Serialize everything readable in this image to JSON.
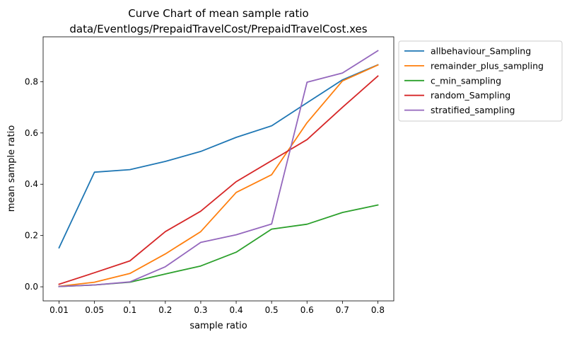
{
  "chart_data": {
    "type": "line",
    "title": "Curve Chart of mean sample ratio",
    "subtitle": "data/Eventlogs/PrepaidTravelCost/PrepaidTravelCost.xes",
    "xlabel": "sample ratio",
    "ylabel": "mean sample ratio",
    "categories": [
      "0.01",
      "0.05",
      "0.1",
      "0.2",
      "0.3",
      "0.4",
      "0.5",
      "0.6",
      "0.7",
      "0.8"
    ],
    "yticks": [
      "0.0",
      "0.2",
      "0.4",
      "0.6",
      "0.8"
    ],
    "ylim": [
      -0.055,
      0.975
    ],
    "grid": false,
    "legend_position": "outside-upper-right",
    "series": [
      {
        "name": "allbehaviour_Sampling",
        "color": "#1f77b4",
        "values": [
          0.152,
          0.447,
          0.457,
          0.489,
          0.528,
          0.583,
          0.628,
          0.718,
          0.807,
          0.866
        ]
      },
      {
        "name": "remainder_plus_sampling",
        "color": "#ff7f0e",
        "values": [
          0.002,
          0.018,
          0.052,
          0.128,
          0.215,
          0.368,
          0.437,
          0.64,
          0.803,
          0.865
        ]
      },
      {
        "name": "c_min_sampling",
        "color": "#2ca02c",
        "values": [
          0.001,
          0.007,
          0.018,
          0.05,
          0.081,
          0.135,
          0.225,
          0.244,
          0.29,
          0.319
        ]
      },
      {
        "name": "random_Sampling",
        "color": "#d62728",
        "values": [
          0.01,
          0.055,
          0.101,
          0.215,
          0.295,
          0.41,
          0.492,
          0.574,
          0.7,
          0.822
        ]
      },
      {
        "name": "stratified_sampling",
        "color": "#9467bd",
        "values": [
          0.001,
          0.007,
          0.019,
          0.078,
          0.173,
          0.203,
          0.245,
          0.798,
          0.834,
          0.921
        ]
      }
    ]
  }
}
